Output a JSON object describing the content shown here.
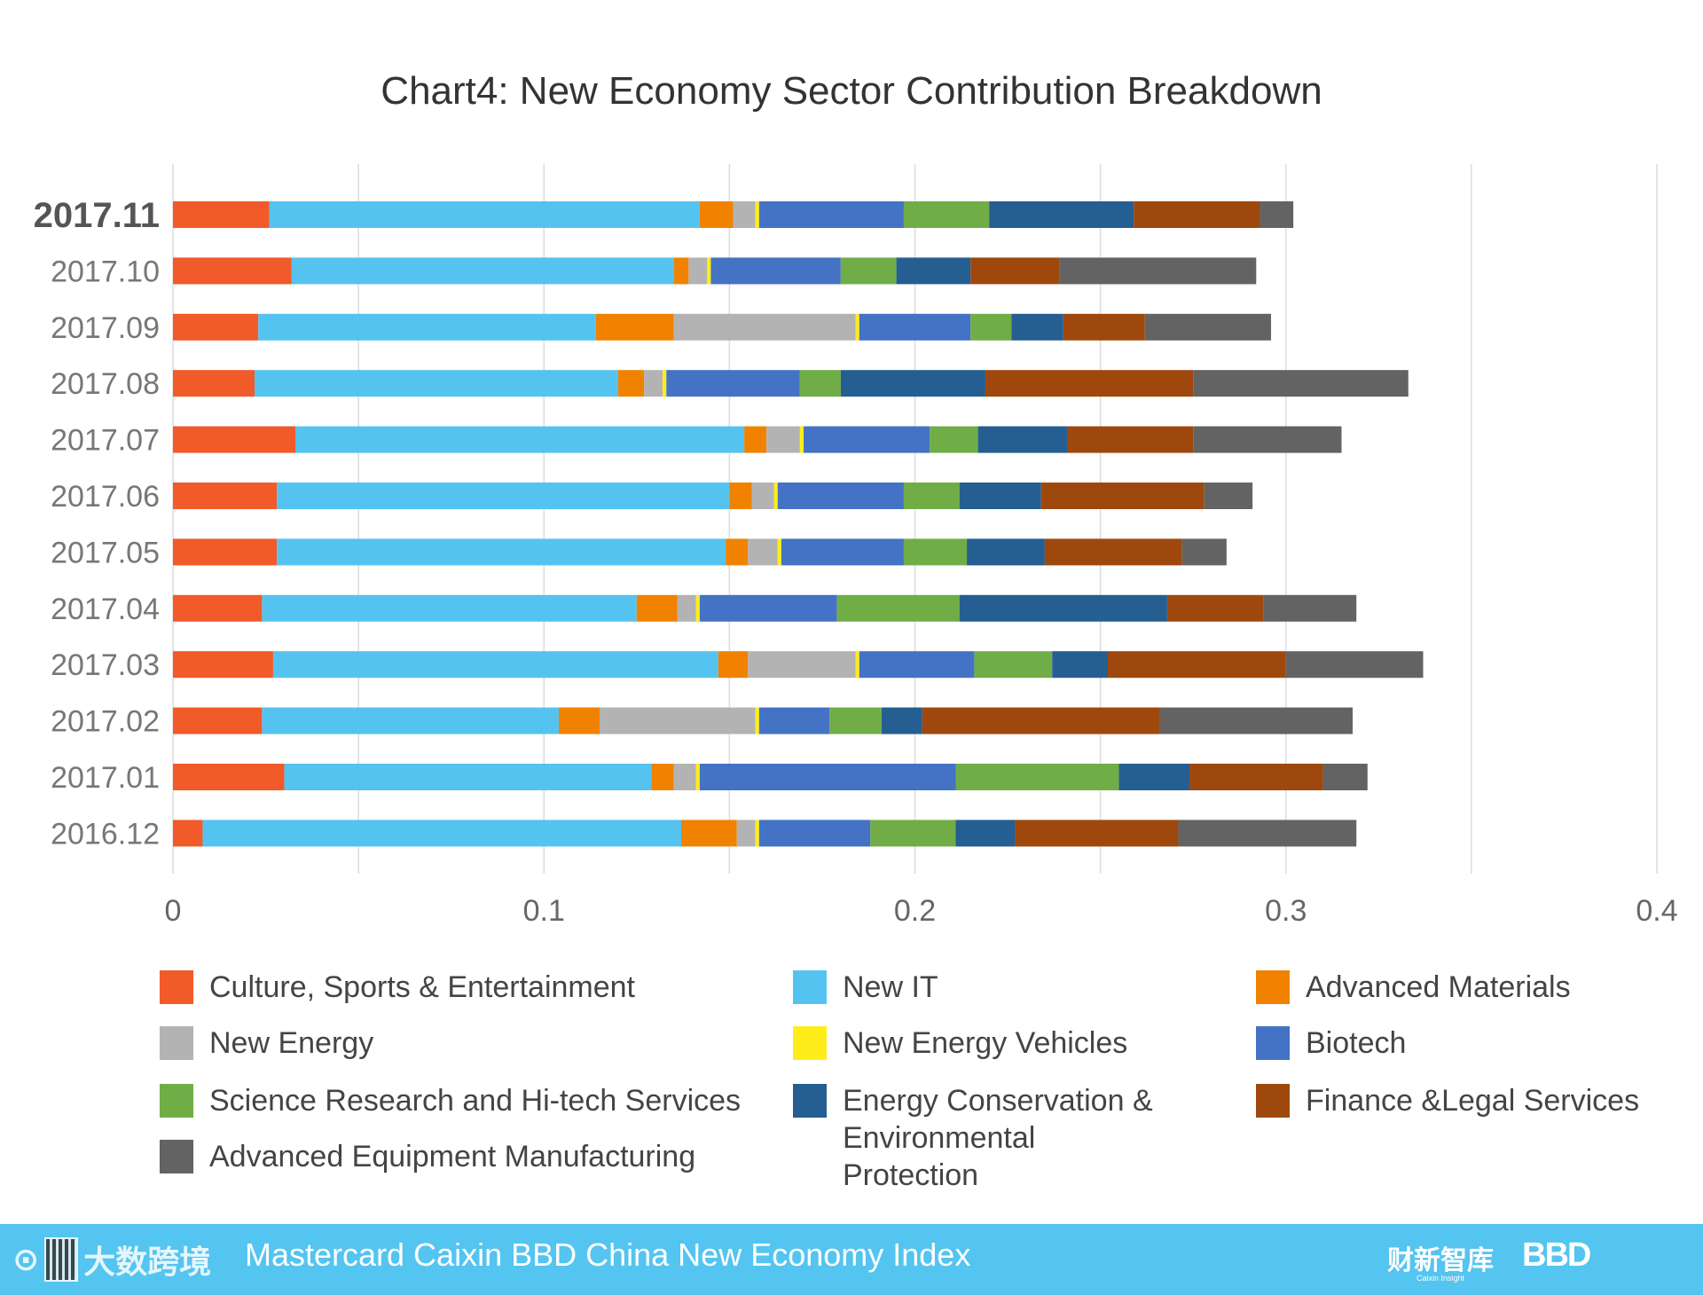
{
  "chart_data": {
    "type": "bar",
    "orientation": "horizontal",
    "stacked": true,
    "title": "Chart4: New Economy Sector Contribution Breakdown",
    "xlim": [
      0,
      0.4
    ],
    "x_ticks": [
      "0",
      "0.1",
      "0.2",
      "0.3",
      "0.4"
    ],
    "x_tick_values": [
      0,
      0.1,
      0.2,
      0.3,
      0.4
    ],
    "grid": true,
    "legend_position": "bottom",
    "categories": [
      "2017.11",
      "2017.10",
      "2017.09",
      "2017.08",
      "2017.07",
      "2017.06",
      "2017.05",
      "2017.04",
      "2017.03",
      "2017.02",
      "2017.01",
      "2016.12"
    ],
    "highlight_category": "2017.11",
    "series": [
      {
        "name": "Culture, Sports & Entertainment",
        "color": "#f15a29",
        "values": [
          0.026,
          0.032,
          0.023,
          0.022,
          0.033,
          0.028,
          0.028,
          0.024,
          0.027,
          0.024,
          0.03,
          0.008
        ]
      },
      {
        "name": "New IT",
        "color": "#55c3f0",
        "values": [
          0.116,
          0.103,
          0.091,
          0.098,
          0.121,
          0.122,
          0.121,
          0.101,
          0.12,
          0.08,
          0.099,
          0.129
        ]
      },
      {
        "name": "Advanced Materials",
        "color": "#f08200",
        "values": [
          0.009,
          0.004,
          0.021,
          0.007,
          0.006,
          0.006,
          0.006,
          0.011,
          0.008,
          0.011,
          0.006,
          0.015
        ]
      },
      {
        "name": "New Energy",
        "color": "#b3b3b3",
        "values": [
          0.006,
          0.005,
          0.049,
          0.005,
          0.009,
          0.006,
          0.008,
          0.005,
          0.029,
          0.042,
          0.006,
          0.005
        ]
      },
      {
        "name": "New Energy Vehicles",
        "color": "#ffed1a",
        "values": [
          0.001,
          0.001,
          0.001,
          0.001,
          0.001,
          0.001,
          0.001,
          0.001,
          0.001,
          0.001,
          0.001,
          0.001
        ]
      },
      {
        "name": "Biotech",
        "color": "#4472c4",
        "values": [
          0.039,
          0.035,
          0.03,
          0.036,
          0.034,
          0.034,
          0.033,
          0.037,
          0.031,
          0.019,
          0.069,
          0.03
        ]
      },
      {
        "name": "Science Research and Hi-tech Services",
        "color": "#70ad47",
        "values": [
          0.023,
          0.015,
          0.011,
          0.011,
          0.013,
          0.015,
          0.017,
          0.033,
          0.021,
          0.014,
          0.044,
          0.023
        ]
      },
      {
        "name": "Energy Conservation & Environmental Protection",
        "color": "#255e91",
        "values": [
          0.039,
          0.02,
          0.014,
          0.039,
          0.024,
          0.022,
          0.021,
          0.056,
          0.015,
          0.011,
          0.019,
          0.016
        ]
      },
      {
        "name": "Finance &Legal Services",
        "color": "#9e480e",
        "values": [
          0.034,
          0.024,
          0.022,
          0.056,
          0.034,
          0.044,
          0.037,
          0.026,
          0.048,
          0.064,
          0.036,
          0.044
        ]
      },
      {
        "name": "Advanced Equipment Manufacturing",
        "color": "#636363",
        "values": [
          0.009,
          0.053,
          0.034,
          0.058,
          0.04,
          0.013,
          0.012,
          0.025,
          0.037,
          0.052,
          0.012,
          0.048
        ]
      }
    ]
  },
  "legend": {
    "items": [
      {
        "label": "Culture, Sports & Entertainment",
        "color": "#f15a29"
      },
      {
        "label": "New IT",
        "color": "#55c3f0"
      },
      {
        "label": "Advanced Materials",
        "color": "#f08200"
      },
      {
        "label": "New Energy",
        "color": "#b3b3b3"
      },
      {
        "label": "New Energy Vehicles",
        "color": "#ffed1a"
      },
      {
        "label": "Biotech",
        "color": "#4472c4"
      },
      {
        "label": "Science Research and Hi-tech Services",
        "color": "#70ad47"
      },
      {
        "label": "Energy Conservation & Environmental Protection",
        "color": "#255e91"
      },
      {
        "label": "Finance &Legal Services",
        "color": "#9e480e"
      },
      {
        "label": "Advanced Equipment Manufacturing",
        "color": "#636363"
      }
    ]
  },
  "footer": {
    "left_logo_text": "大数跨境",
    "title": "Mastercard Caixin BBD China New Economy Index",
    "brand1": "财新智库",
    "brand1_sub": "Caixin Insight",
    "brand2": "BBD",
    "background_color": "#54c4f0"
  }
}
